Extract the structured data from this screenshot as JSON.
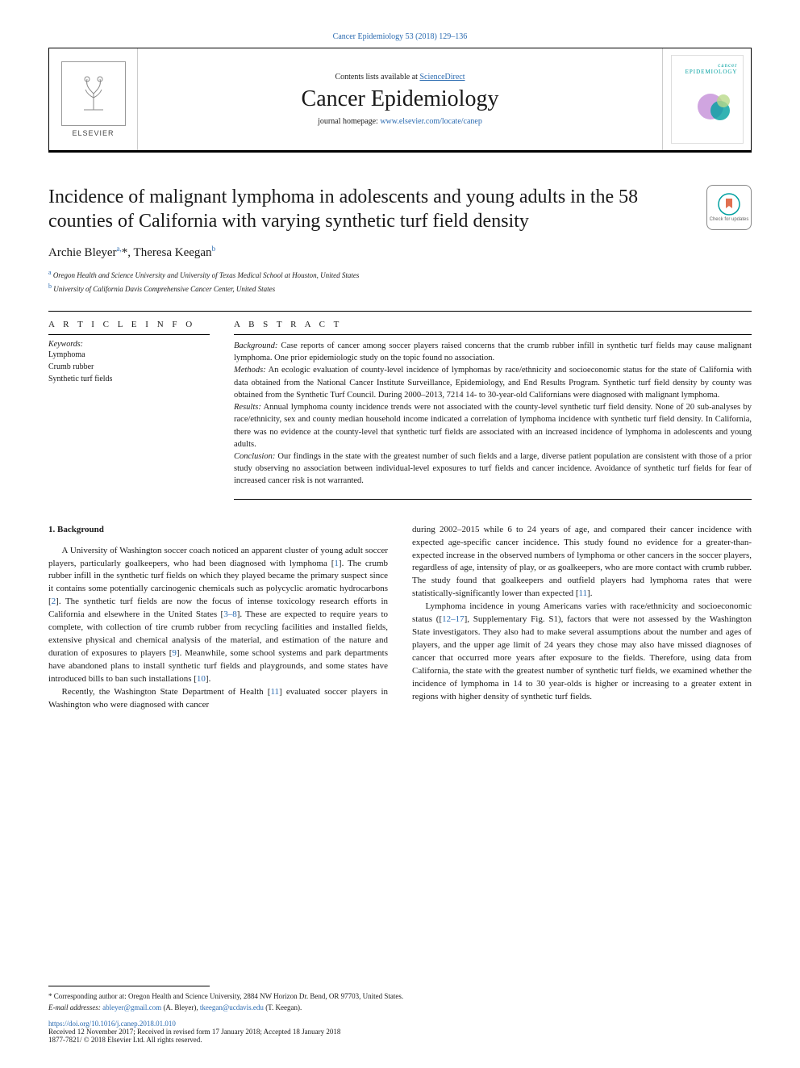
{
  "journal_ref": "Cancer Epidemiology 53 (2018) 129–136",
  "masthead": {
    "publisher": "ELSEVIER",
    "contents_prefix": "Contents lists available at ",
    "contents_link": "ScienceDirect",
    "journal_title": "Cancer Epidemiology",
    "homepage_prefix": "journal homepage: ",
    "homepage_url": "www.elsevier.com/locate/canep",
    "cover_label": "cancer\nEPIDEMIOLOGY"
  },
  "article": {
    "title": "Incidence of malignant lymphoma in adolescents and young adults in the 58 counties of California with varying synthetic turf field density",
    "badge_text": "Check for updates",
    "authors_html": "Archie Bleyer<sup>a,</sup>*, Theresa Keegan<sup>b</sup>",
    "affiliations": [
      {
        "sup": "a",
        "text": "Oregon Health and Science University and University of Texas Medical School at Houston, United States"
      },
      {
        "sup": "b",
        "text": "University of California Davis Comprehensive Cancer Center, United States"
      }
    ]
  },
  "info": {
    "heading": "A R T I C L E  I N F O",
    "keywords_label": "Keywords:",
    "keywords": [
      "Lymphoma",
      "Crumb rubber",
      "Synthetic turf fields"
    ]
  },
  "abstract": {
    "heading": "A B S T R A C T",
    "paragraphs": [
      {
        "label": "Background:",
        "text": "Case reports of cancer among soccer players raised concerns that the crumb rubber infill in synthetic turf fields may cause malignant lymphoma. One prior epidemiologic study on the topic found no association."
      },
      {
        "label": "Methods:",
        "text": "An ecologic evaluation of county-level incidence of lymphomas by race/ethnicity and socioeconomic status for the state of California with data obtained from the National Cancer Institute Surveillance, Epidemiology, and End Results Program. Synthetic turf field density by county was obtained from the Synthetic Turf Council. During 2000–2013, 7214 14- to 30-year-old Californians were diagnosed with malignant lymphoma."
      },
      {
        "label": "Results:",
        "text": "Annual lymphoma county incidence trends were not associated with the county-level synthetic turf field density. None of 20 sub-analyses by race/ethnicity, sex and county median household income indicated a correlation of lymphoma incidence with synthetic turf field density. In California, there was no evidence at the county-level that synthetic turf fields are associated with an increased incidence of lymphoma in adolescents and young adults."
      },
      {
        "label": "Conclusion:",
        "text": "Our findings in the state with the greatest number of such fields and a large, diverse patient population are consistent with those of a prior study observing no association between individual-level exposures to turf fields and cancer incidence. Avoidance of synthetic turf fields for fear of increased cancer risk is not warranted."
      }
    ]
  },
  "body": {
    "section_heading": "1. Background",
    "col1": [
      "A University of Washington soccer coach noticed an apparent cluster of young adult soccer players, particularly goalkeepers, who had been diagnosed with lymphoma [<a class='ref' href='#'>1</a>]. The crumb rubber infill in the synthetic turf fields on which they played became the primary suspect since it contains some potentially carcinogenic chemicals such as polycyclic aromatic hydrocarbons [<a class='ref' href='#'>2</a>]. The synthetic turf fields are now the focus of intense toxicology research efforts in California and elsewhere in the United States [<a class='ref' href='#'>3–8</a>]. These are expected to require years to complete, with collection of tire crumb rubber from recycling facilities and installed fields, extensive physical and chemical analysis of the material, and estimation of the nature and duration of exposures to players [<a class='ref' href='#'>9</a>]. Meanwhile, some school systems and park departments have abandoned plans to install synthetic turf fields and playgrounds, and some states have introduced bills to ban such installations [<a class='ref' href='#'>10</a>].",
      "Recently, the Washington State Department of Health [<a class='ref' href='#'>11</a>] evaluated soccer players in Washington who were diagnosed with cancer"
    ],
    "col2": [
      "during 2002–2015 while 6 to 24 years of age, and compared their cancer incidence with expected age-specific cancer incidence. This study found no evidence for a greater-than-expected increase in the observed numbers of lymphoma or other cancers in the soccer players, regardless of age, intensity of play, or as goalkeepers, who are more contact with crumb rubber. The study found that goalkeepers and outfield players had lymphoma rates that were statistically-significantly lower than expected [<a class='ref' href='#'>11</a>].",
      "Lymphoma incidence in young Americans varies with race/ethnicity and socioeconomic status ([<a class='ref' href='#'>12–17</a>], Supplementary Fig. S1), factors that were not assessed by the Washington State investigators. They also had to make several assumptions about the number and ages of players, and the upper age limit of 24 years they chose may also have missed diagnoses of cancer that occurred more years after exposure to the fields. Therefore, using data from California, the state with the greatest number of synthetic turf fields, we examined whether the incidence of lymphoma in 14 to 30 year-olds is higher or increasing to a greater extent in regions with higher density of synthetic turf fields."
    ]
  },
  "footer": {
    "corresponding": "* Corresponding author at: Oregon Health and Science University, 2884 NW Horizon Dr. Bend, OR 97703, United States.",
    "email_label": "E-mail addresses:",
    "emails": [
      {
        "addr": "ableyer@gmail.com",
        "name": "(A. Bleyer),"
      },
      {
        "addr": "tkeegan@ucdavis.edu",
        "name": "(T. Keegan)."
      }
    ],
    "doi": "https://doi.org/10.1016/j.canep.2018.01.010",
    "received": "Received 12 November 2017; Received in revised form 17 January 2018; Accepted 18 January 2018",
    "copyright": "1877-7821/ © 2018 Elsevier Ltd. All rights reserved."
  },
  "colors": {
    "link": "#2a6ab0",
    "text": "#1a1a1a"
  }
}
